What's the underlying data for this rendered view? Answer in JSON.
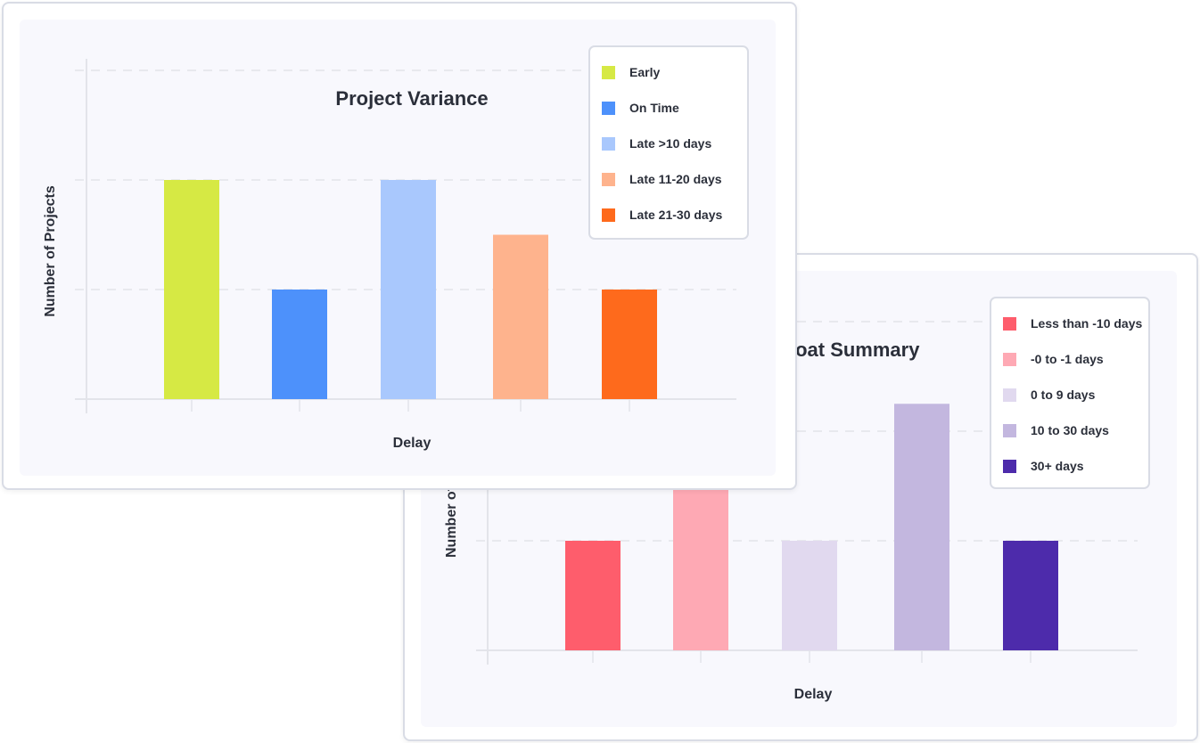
{
  "chart_data": [
    {
      "type": "bar",
      "title": "Project Variance",
      "xlabel": "Delay",
      "ylabel": "Number of Projects",
      "categories": [
        "Early",
        "On Time",
        "Late >10 days",
        "Late 11-20 days",
        "Late 21-30 days"
      ],
      "values": [
        2,
        1,
        2,
        1.5,
        1
      ],
      "colors": [
        "#d6e944",
        "#4d91fb",
        "#a9c8fd",
        "#feb38d",
        "#fe6a1c"
      ],
      "ylim": [
        0,
        3
      ],
      "grid": true,
      "legend_position": "top-right"
    },
    {
      "type": "bar",
      "title": "Float Summary",
      "xlabel": "Delay",
      "ylabel": "Number of",
      "categories": [
        "Less than -10 days",
        "-0 to -1 days",
        "0 to 9 days",
        "10 to 30 days",
        "30+ days"
      ],
      "values": [
        1,
        2,
        1,
        2.25,
        1
      ],
      "colors": [
        "#fe5d6c",
        "#fea9b4",
        "#e1d9ef",
        "#c3b7df",
        "#4d2bab"
      ],
      "ylim": [
        0,
        3
      ],
      "grid": true,
      "legend_position": "top-right"
    }
  ]
}
